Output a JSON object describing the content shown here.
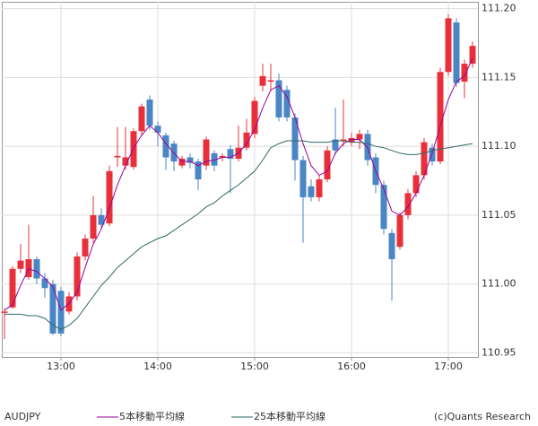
{
  "chart_data": {
    "type": "candlestick",
    "symbol": "AUDJPY",
    "credit": "(c)Quants Research",
    "x": [
      "12:25",
      "12:30",
      "12:35",
      "12:40",
      "12:45",
      "12:50",
      "12:55",
      "13:00",
      "13:05",
      "13:10",
      "13:15",
      "13:20",
      "13:25",
      "13:30",
      "13:35",
      "13:40",
      "13:45",
      "13:50",
      "13:55",
      "14:00",
      "14:05",
      "14:10",
      "14:15",
      "14:20",
      "14:25",
      "14:30",
      "14:35",
      "14:40",
      "14:45",
      "14:50",
      "14:55",
      "15:00",
      "15:05",
      "15:10",
      "15:15",
      "15:20",
      "15:25",
      "15:30",
      "15:35",
      "15:40",
      "15:45",
      "15:50",
      "15:55",
      "16:00",
      "16:05",
      "16:10",
      "16:15",
      "16:20",
      "16:25",
      "16:30",
      "16:35",
      "16:40",
      "16:45",
      "16:50",
      "16:55",
      "17:00",
      "17:05",
      "17:10",
      "17:15"
    ],
    "open": [
      110.979,
      110.983,
      111.011,
      111.005,
      111.018,
      111.004,
      111.0,
      110.995,
      110.98,
      110.991,
      111.02,
      111.033,
      111.05,
      111.044,
      111.092,
      111.086,
      111.085,
      111.111,
      111.134,
      111.115,
      111.108,
      111.102,
      111.086,
      111.092,
      111.089,
      111.086,
      111.095,
      111.092,
      111.098,
      111.091,
      111.099,
      111.109,
      111.144,
      111.147,
      111.148,
      111.141,
      111.121,
      111.09,
      111.071,
      111.063,
      111.076,
      111.105,
      111.104,
      111.103,
      111.105,
      111.109,
      111.092,
      111.072,
      111.037,
      111.027,
      111.05,
      111.066,
      111.079,
      111.099,
      111.089,
      111.154,
      111.19,
      111.147,
      111.16
    ],
    "high": [
      110.982,
      111.013,
      111.029,
      111.043,
      111.02,
      111.008,
      111.003,
      110.998,
      110.994,
      111.023,
      111.036,
      111.064,
      111.055,
      111.086,
      111.114,
      111.114,
      111.113,
      111.131,
      111.137,
      111.118,
      111.11,
      111.104,
      111.093,
      111.095,
      111.091,
      111.107,
      111.097,
      111.095,
      111.101,
      111.115,
      111.12,
      111.136,
      111.16,
      111.16,
      111.153,
      111.144,
      111.124,
      111.093,
      111.076,
      111.079,
      111.1,
      111.128,
      111.134,
      111.11,
      111.112,
      111.112,
      111.095,
      111.075,
      111.04,
      111.052,
      111.069,
      111.082,
      111.106,
      111.102,
      111.157,
      111.196,
      111.193,
      111.163,
      111.176
    ],
    "low": [
      110.96,
      110.982,
      111.008,
      111.003,
      111.0,
      110.99,
      110.963,
      110.962,
      110.978,
      110.988,
      111.017,
      111.03,
      111.04,
      111.042,
      111.085,
      111.083,
      111.083,
      111.108,
      111.112,
      111.1,
      111.083,
      111.082,
      111.084,
      111.084,
      111.068,
      111.083,
      111.082,
      111.089,
      111.066,
      111.089,
      111.097,
      111.106,
      111.14,
      111.14,
      111.118,
      111.118,
      111.075,
      111.03,
      111.06,
      111.06,
      111.074,
      111.094,
      111.1,
      111.1,
      111.098,
      111.086,
      111.066,
      111.036,
      110.988,
      111.025,
      111.047,
      111.063,
      111.076,
      111.086,
      111.087,
      111.151,
      111.143,
      111.135,
      111.157
    ],
    "close": [
      110.98,
      111.011,
      111.017,
      111.018,
      111.004,
      110.997,
      110.964,
      110.964,
      110.991,
      111.02,
      111.033,
      111.05,
      111.043,
      111.082,
      111.093,
      111.092,
      111.111,
      111.129,
      111.115,
      111.11,
      111.092,
      111.089,
      111.091,
      111.088,
      111.076,
      111.105,
      111.086,
      111.093,
      111.091,
      111.099,
      111.11,
      111.133,
      111.151,
      111.148,
      111.121,
      111.121,
      111.09,
      111.063,
      111.063,
      111.076,
      111.097,
      111.097,
      111.105,
      111.106,
      111.109,
      111.09,
      111.072,
      111.04,
      111.018,
      111.05,
      111.066,
      111.079,
      111.103,
      111.089,
      111.154,
      111.193,
      111.146,
      111.16,
      111.173
    ],
    "up_color": "#e8303a",
    "down_color": "#4a86c4",
    "series": [
      {
        "name": "5本移動平均線",
        "color": "#990099",
        "values": [
          110.981,
          110.985,
          110.999,
          111.011,
          111.009,
          111.004,
          110.998,
          110.981,
          110.986,
          110.994,
          111.012,
          111.029,
          111.04,
          111.055,
          111.072,
          111.086,
          111.099,
          111.108,
          111.115,
          111.11,
          111.102,
          111.095,
          111.089,
          111.089,
          111.086,
          111.089,
          111.09,
          111.092,
          111.092,
          111.095,
          111.102,
          111.112,
          111.128,
          111.141,
          111.144,
          111.136,
          111.121,
          111.102,
          111.086,
          111.079,
          111.082,
          111.095,
          111.102,
          111.105,
          111.105,
          111.099,
          111.082,
          111.069,
          111.053,
          111.05,
          111.056,
          111.066,
          111.079,
          111.095,
          111.115,
          111.134,
          111.147,
          111.151,
          111.164
        ]
      },
      {
        "name": "25本移動平均線",
        "color": "#336666",
        "values": [
          110.978,
          110.978,
          110.978,
          110.977,
          110.977,
          110.975,
          110.97,
          110.967,
          110.97,
          110.975,
          110.983,
          110.991,
          110.999,
          111.005,
          111.012,
          111.017,
          111.022,
          111.027,
          111.03,
          111.033,
          111.035,
          111.039,
          111.043,
          111.047,
          111.051,
          111.056,
          111.059,
          111.064,
          111.068,
          111.072,
          111.077,
          111.082,
          111.09,
          111.099,
          111.102,
          111.104,
          111.104,
          111.104,
          111.103,
          111.103,
          111.103,
          111.104,
          111.104,
          111.103,
          111.103,
          111.102,
          111.1,
          111.099,
          111.097,
          111.095,
          111.094,
          111.094,
          111.095,
          111.097,
          111.098,
          111.099,
          111.1,
          111.101,
          111.102
        ]
      }
    ],
    "ylim": [
      110.947,
      111.205
    ],
    "yticks": [
      {
        "value": 111.2,
        "label": "111.20"
      },
      111.15,
      {
        "value": 111.1,
        "label": "111.10"
      },
      111.05,
      {
        "value": 111.0,
        "label": "111.00"
      },
      110.95
    ],
    "xticks": [
      "13:00",
      "14:00",
      "15:00",
      "16:00",
      "17:00"
    ],
    "grid": true
  }
}
